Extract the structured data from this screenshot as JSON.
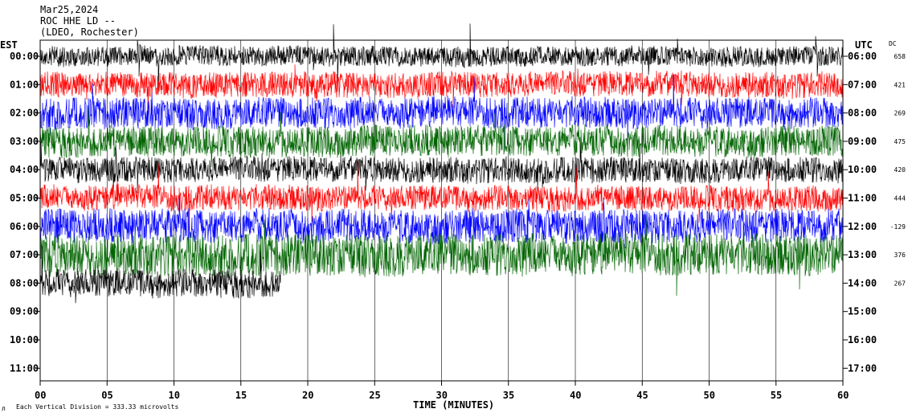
{
  "header": {
    "date": "Mar25,2024",
    "station": "ROC HHE LD --",
    "network": "(LDEO, Rochester)"
  },
  "axes": {
    "left_tz": "EST",
    "right_tz": "UTC",
    "dc_label": "DC",
    "xlabel": "TIME (MINUTES)",
    "footer": "Each Vertical Division =  333.33 microvolts"
  },
  "colors": {
    "black": "#000000",
    "red": "#ff0000",
    "blue": "#0000ff",
    "green": "#006400",
    "grid": "#000000"
  },
  "chart_data": {
    "type": "line",
    "title": "ROC HHE LD --",
    "xlabel": "TIME (MINUTES)",
    "xlim": [
      0,
      60
    ],
    "x_ticks": [
      "00",
      "05",
      "10",
      "15",
      "20",
      "25",
      "30",
      "35",
      "40",
      "45",
      "50",
      "55",
      "60"
    ],
    "rows": [
      {
        "est": "00:00",
        "utc": "06:00",
        "dc": "658",
        "color": "black",
        "amp": 0.35,
        "end_min": 60
      },
      {
        "est": "01:00",
        "utc": "07:00",
        "dc": "421",
        "color": "red",
        "amp": 0.45,
        "end_min": 60
      },
      {
        "est": "02:00",
        "utc": "08:00",
        "dc": "269",
        "color": "blue",
        "amp": 0.55,
        "end_min": 60
      },
      {
        "est": "03:00",
        "utc": "09:00",
        "dc": "475",
        "color": "green",
        "amp": 0.55,
        "end_min": 60
      },
      {
        "est": "04:00",
        "utc": "10:00",
        "dc": "420",
        "color": "black",
        "amp": 0.45,
        "end_min": 60
      },
      {
        "est": "05:00",
        "utc": "11:00",
        "dc": "444",
        "color": "red",
        "amp": 0.45,
        "end_min": 60
      },
      {
        "est": "06:00",
        "utc": "12:00",
        "dc": "-129",
        "color": "blue",
        "amp": 0.6,
        "end_min": 60
      },
      {
        "est": "07:00",
        "utc": "13:00",
        "dc": "376",
        "color": "green",
        "amp": 0.75,
        "end_min": 60
      },
      {
        "est": "08:00",
        "utc": "14:00",
        "dc": "267",
        "color": "black",
        "amp": 0.5,
        "end_min": 18
      },
      {
        "est": "09:00",
        "utc": "15:00",
        "dc": "",
        "color": "black",
        "amp": 0,
        "end_min": 0
      },
      {
        "est": "10:00",
        "utc": "16:00",
        "dc": "",
        "color": "black",
        "amp": 0,
        "end_min": 0
      },
      {
        "est": "11:00",
        "utc": "17:00",
        "dc": "",
        "color": "black",
        "amp": 0,
        "end_min": 0
      }
    ]
  }
}
